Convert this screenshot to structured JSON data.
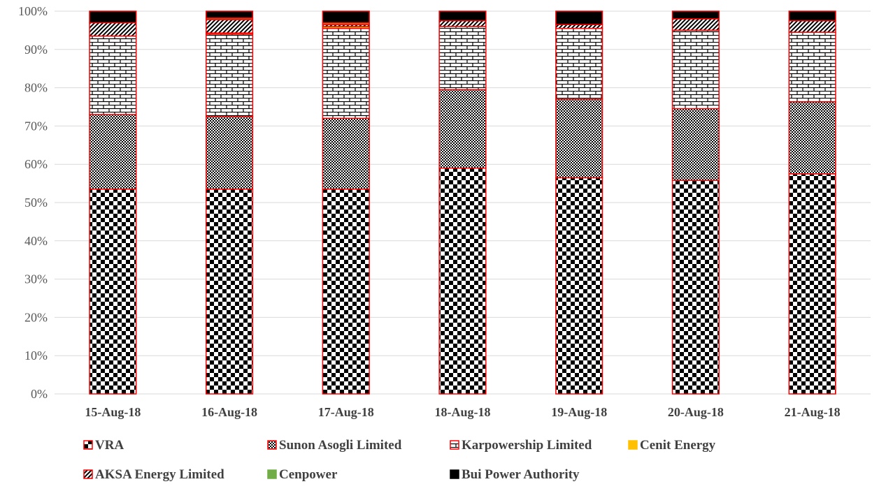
{
  "chart_data": {
    "type": "bar",
    "stacked": true,
    "normalized": true,
    "title": "",
    "xlabel": "",
    "ylabel": "",
    "ylim": [
      0,
      100
    ],
    "y_ticks": [
      "0%",
      "10%",
      "20%",
      "30%",
      "40%",
      "50%",
      "60%",
      "70%",
      "80%",
      "90%",
      "100%"
    ],
    "grid": "horizontal",
    "legend_position": "bottom",
    "categories": [
      "15-Aug-18",
      "16-Aug-18",
      "17-Aug-18",
      "18-Aug-18",
      "19-Aug-18",
      "20-Aug-18",
      "21-Aug-18"
    ],
    "series": [
      {
        "name": "VRA",
        "pattern": "checker",
        "color": "#000000",
        "values": [
          53.5,
          53.5,
          53.5,
          59.0,
          56.5,
          55.8,
          57.5
        ]
      },
      {
        "name": "Sunon Asogli Limited",
        "pattern": "dense-checker",
        "color": "#000000",
        "values": [
          19.5,
          19.0,
          18.5,
          20.5,
          20.5,
          18.7,
          18.8
        ]
      },
      {
        "name": "Karpowership Limited",
        "pattern": "brick",
        "color": "#000000",
        "values": [
          20.5,
          21.5,
          23.5,
          16.5,
          18.5,
          20.5,
          18.2
        ]
      },
      {
        "name": "Cenit Energy",
        "pattern": "solid",
        "color": "#ffc000",
        "values": [
          0.0,
          0.3,
          0.5,
          0.0,
          0.0,
          0.0,
          0.0
        ]
      },
      {
        "name": "AKSA Energy Limited",
        "pattern": "diagonal",
        "color": "#000000",
        "values": [
          3.5,
          3.5,
          0.5,
          1.5,
          1.0,
          3.0,
          3.0
        ]
      },
      {
        "name": "Cenpower",
        "pattern": "solid",
        "color": "#70ad47",
        "values": [
          0.0,
          0.4,
          0.5,
          0.0,
          0.0,
          0.0,
          0.0
        ]
      },
      {
        "name": "Bui Power Authority",
        "pattern": "solid",
        "color": "#000000",
        "values": [
          3.0,
          1.8,
          3.0,
          2.5,
          3.5,
          2.0,
          2.5
        ]
      }
    ],
    "segment_outline_color": "#ff0000",
    "grid_color": "#d9d9d9",
    "axis_color": "#d9d9d9"
  }
}
